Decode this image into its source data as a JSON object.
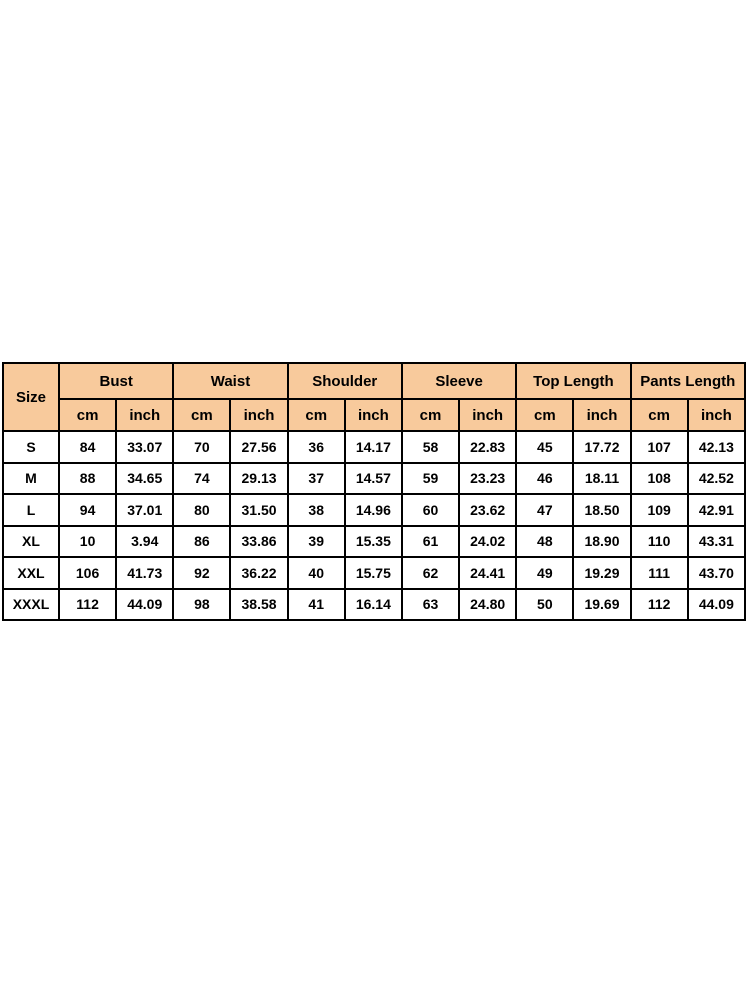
{
  "chart_data": {
    "type": "table",
    "corner_label": "Size",
    "measurement_groups": [
      "Bust",
      "Waist",
      "Shoulder",
      "Sleeve",
      "Top Length",
      "Pants Length"
    ],
    "unit_labels": [
      "cm",
      "inch"
    ],
    "rows": [
      {
        "size": "S",
        "values": [
          "84",
          "33.07",
          "70",
          "27.56",
          "36",
          "14.17",
          "58",
          "22.83",
          "45",
          "17.72",
          "107",
          "42.13"
        ]
      },
      {
        "size": "M",
        "values": [
          "88",
          "34.65",
          "74",
          "29.13",
          "37",
          "14.57",
          "59",
          "23.23",
          "46",
          "18.11",
          "108",
          "42.52"
        ]
      },
      {
        "size": "L",
        "values": [
          "94",
          "37.01",
          "80",
          "31.50",
          "38",
          "14.96",
          "60",
          "23.62",
          "47",
          "18.50",
          "109",
          "42.91"
        ]
      },
      {
        "size": "XL",
        "values": [
          "10",
          "3.94",
          "86",
          "33.86",
          "39",
          "15.35",
          "61",
          "24.02",
          "48",
          "18.90",
          "110",
          "43.31"
        ]
      },
      {
        "size": "XXL",
        "values": [
          "106",
          "41.73",
          "92",
          "36.22",
          "40",
          "15.75",
          "62",
          "24.41",
          "49",
          "19.29",
          "111",
          "43.70"
        ]
      },
      {
        "size": "XXXL",
        "values": [
          "112",
          "44.09",
          "98",
          "38.58",
          "41",
          "16.14",
          "63",
          "24.80",
          "50",
          "19.69",
          "112",
          "44.09"
        ]
      }
    ]
  },
  "colors": {
    "page_bg": "#FFFFFF",
    "header_bg": "#F8CA9C",
    "cell_bg": "#FFFFFF",
    "border": "#000000",
    "text": "#000000"
  }
}
